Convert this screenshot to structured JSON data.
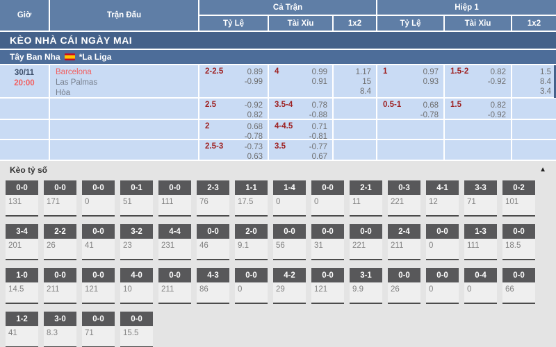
{
  "header": {
    "time_col": "Giờ",
    "match_col": "Trận Đấu",
    "full_match": "Cả Trận",
    "first_half": "Hiệp 1",
    "sub_cols": [
      "Tỷ Lệ",
      "Tài Xỉu",
      "1x2"
    ]
  },
  "banner": {
    "title": "KÈO NHÀ CÁI NGÀY MAI"
  },
  "league": {
    "country": "Tây Ban Nha",
    "flag_icon": "spain-flag",
    "name": "*La Liga"
  },
  "match": {
    "date": "30/11",
    "time": "20:00",
    "home": "Barcelona",
    "away": "Las Palmas",
    "draw": "Hòa"
  },
  "odds_rows": [
    {
      "ft_hdp_line": "2-2.5",
      "ft_hdp_odds": [
        "0.89",
        "-0.99"
      ],
      "ft_ou_line": "4",
      "ft_ou_odds": [
        "0.99",
        "0.91"
      ],
      "ft_1x2": [
        "1.17",
        "15",
        "8.4"
      ],
      "h1_hdp_line": "1",
      "h1_hdp_odds": [
        "0.97",
        "0.93"
      ],
      "h1_ou_line": "1.5-2",
      "h1_ou_odds": [
        "0.82",
        "-0.92"
      ],
      "h1_1x2": [
        "1.5",
        "8.4",
        "3.4"
      ]
    },
    {
      "ft_hdp_line": "2.5",
      "ft_hdp_odds": [
        "-0.92",
        "0.82"
      ],
      "ft_ou_line": "3.5-4",
      "ft_ou_odds": [
        "0.78",
        "-0.88"
      ],
      "ft_1x2": [],
      "h1_hdp_line": "0.5-1",
      "h1_hdp_odds": [
        "0.68",
        "-0.78"
      ],
      "h1_ou_line": "1.5",
      "h1_ou_odds": [
        "0.82",
        "-0.92"
      ],
      "h1_1x2": []
    },
    {
      "ft_hdp_line": "2",
      "ft_hdp_odds": [
        "0.68",
        "-0.78"
      ],
      "ft_ou_line": "4-4.5",
      "ft_ou_odds": [
        "0.71",
        "-0.81"
      ],
      "ft_1x2": [],
      "h1_1x2": []
    },
    {
      "ft_hdp_line": "2.5-3",
      "ft_hdp_odds": [
        "-0.73",
        "0.63"
      ],
      "ft_ou_line": "3.5",
      "ft_ou_odds": [
        "-0.77",
        "0.67"
      ],
      "ft_1x2": [],
      "h1_1x2": []
    }
  ],
  "score_section": {
    "title": "Kèo tỷ số",
    "collapse_icon": "▲",
    "rows": [
      [
        {
          "score": "0-0",
          "odds": "131"
        },
        {
          "score": "0-0",
          "odds": "171"
        },
        {
          "score": "0-0",
          "odds": "0"
        },
        {
          "score": "0-1",
          "odds": "51"
        },
        {
          "score": "0-0",
          "odds": "111"
        },
        {
          "score": "2-3",
          "odds": "76"
        },
        {
          "score": "1-1",
          "odds": "17.5"
        },
        {
          "score": "1-4",
          "odds": "0"
        },
        {
          "score": "0-0",
          "odds": "0"
        },
        {
          "score": "2-1",
          "odds": "11"
        },
        {
          "score": "0-3",
          "odds": "221"
        },
        {
          "score": "4-1",
          "odds": "12"
        },
        {
          "score": "3-3",
          "odds": "71"
        },
        {
          "score": "0-2",
          "odds": "101"
        }
      ],
      [
        {
          "score": "3-4",
          "odds": "201"
        },
        {
          "score": "2-2",
          "odds": "26"
        },
        {
          "score": "0-0",
          "odds": "41"
        },
        {
          "score": "3-2",
          "odds": "23"
        },
        {
          "score": "4-4",
          "odds": "231"
        },
        {
          "score": "0-0",
          "odds": "46"
        },
        {
          "score": "2-0",
          "odds": "9.1"
        },
        {
          "score": "0-0",
          "odds": "56"
        },
        {
          "score": "0-0",
          "odds": "31"
        },
        {
          "score": "0-0",
          "odds": "221"
        },
        {
          "score": "2-4",
          "odds": "211"
        },
        {
          "score": "0-0",
          "odds": "0"
        },
        {
          "score": "1-3",
          "odds": "111"
        },
        {
          "score": "0-0",
          "odds": "18.5"
        }
      ],
      [
        {
          "score": "1-0",
          "odds": "14.5"
        },
        {
          "score": "0-0",
          "odds": "211"
        },
        {
          "score": "0-0",
          "odds": "121"
        },
        {
          "score": "4-0",
          "odds": "10"
        },
        {
          "score": "0-0",
          "odds": "211"
        },
        {
          "score": "4-3",
          "odds": "86"
        },
        {
          "score": "0-0",
          "odds": "0"
        },
        {
          "score": "4-2",
          "odds": "29"
        },
        {
          "score": "0-0",
          "odds": "121"
        },
        {
          "score": "3-1",
          "odds": "9.9"
        },
        {
          "score": "0-0",
          "odds": "26"
        },
        {
          "score": "0-0",
          "odds": "0"
        },
        {
          "score": "0-4",
          "odds": "0"
        },
        {
          "score": "0-0",
          "odds": "66"
        }
      ],
      [
        {
          "score": "1-2",
          "odds": "41"
        },
        {
          "score": "3-0",
          "odds": "8.3"
        },
        {
          "score": "0-0",
          "odds": "71"
        },
        {
          "score": "0-0",
          "odds": "15.5"
        }
      ]
    ]
  },
  "colors": {
    "header_bg": "#5f7ea6",
    "banner_bg": "#44618a",
    "league_bg": "#4d6d99",
    "row_bg": "#c9dbf4",
    "handicap_line_red": "#9e2121",
    "team_time_red": "#f25f5f",
    "score_button_bg": "#58585a"
  }
}
